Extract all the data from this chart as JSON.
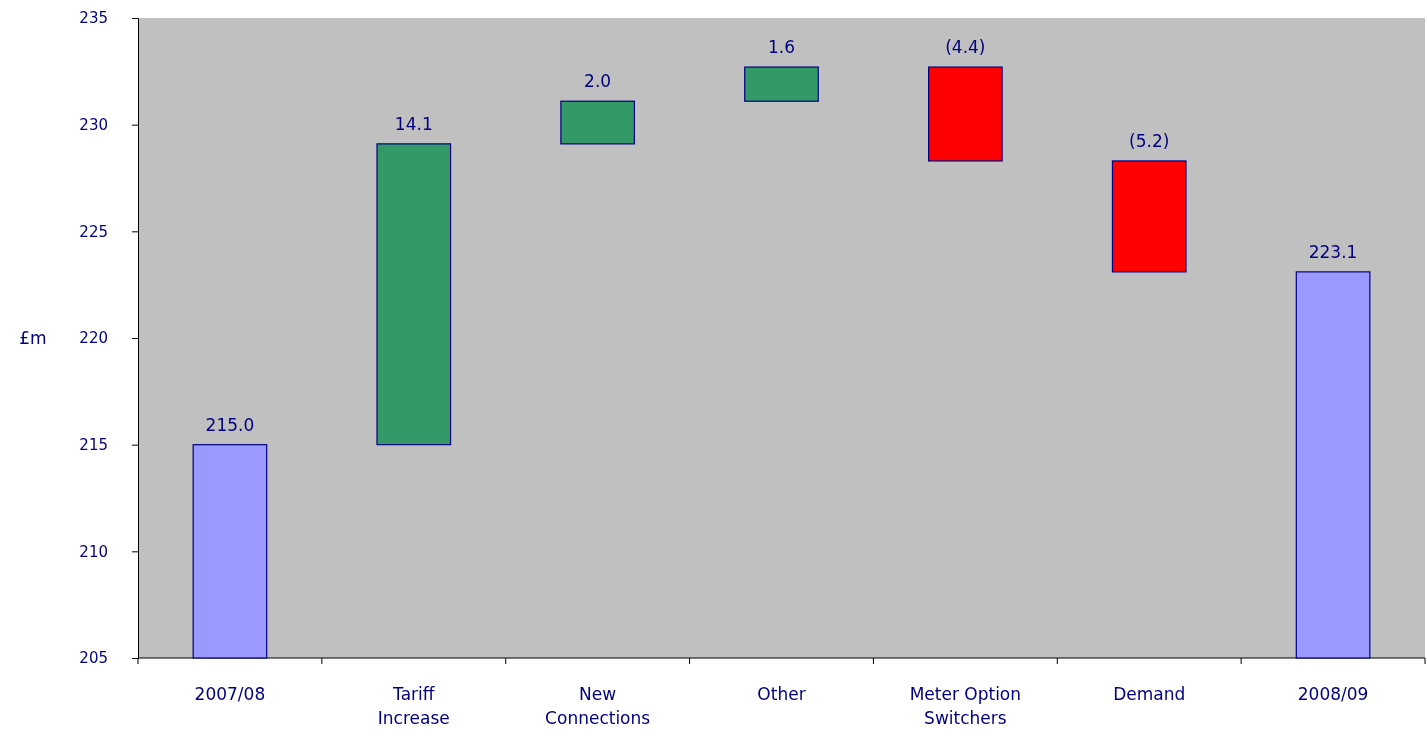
{
  "chart_data": {
    "type": "bar",
    "ylabel": "£m",
    "categories": [
      "2007/08",
      "Tariff Increase",
      "New Connections",
      "Other",
      "Meter Option Switchers",
      "Demand",
      "2008/09"
    ],
    "values": [
      215.0,
      14.1,
      2.0,
      1.6,
      -4.4,
      -5.2,
      223.1
    ],
    "base": [
      null,
      215.0,
      229.1,
      231.1,
      232.7,
      228.3,
      null
    ],
    "colors": [
      "#9999ff",
      "#339966",
      "#339966",
      "#339966",
      "#ff0000",
      "#ff0000",
      "#9999ff"
    ],
    "value_labels": [
      "215.0",
      "14.1",
      "2.0",
      "1.6",
      "(4.4)",
      "(5.2)",
      "223.1"
    ],
    "ylim": [
      205,
      235
    ],
    "yticks": [
      205,
      210,
      215,
      220,
      225,
      230,
      235
    ],
    "grid": false
  }
}
